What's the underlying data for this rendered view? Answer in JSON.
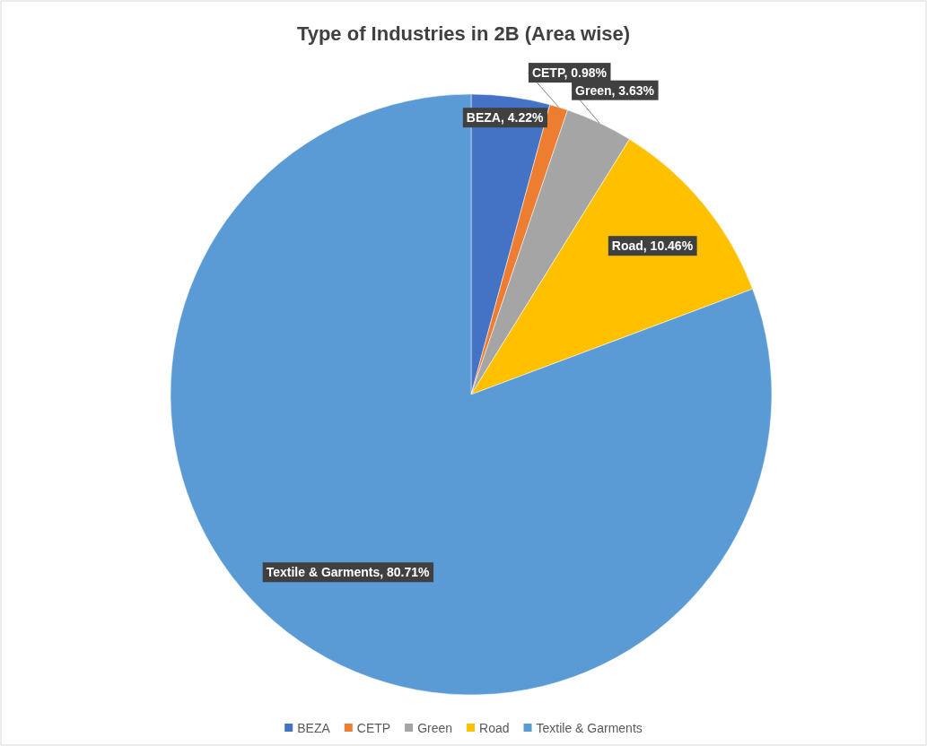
{
  "chart_data": {
    "type": "pie",
    "title": "Type of Industries in 2B (Area wise)",
    "categories": [
      "BEZA",
      "CETP",
      "Green",
      "Road",
      "Textile & Garments"
    ],
    "values": [
      4.22,
      0.98,
      3.63,
      10.46,
      80.71
    ],
    "colors": [
      "#4472c4",
      "#ed7d31",
      "#a5a5a5",
      "#ffc000",
      "#5b9bd5"
    ],
    "value_labels": [
      "BEZA, 4.22%",
      "CETP, 0.98%",
      "Green, 3.63%",
      "Road, 10.46%",
      "Textile & Garments, 80.71%"
    ],
    "legend": "bottom"
  }
}
